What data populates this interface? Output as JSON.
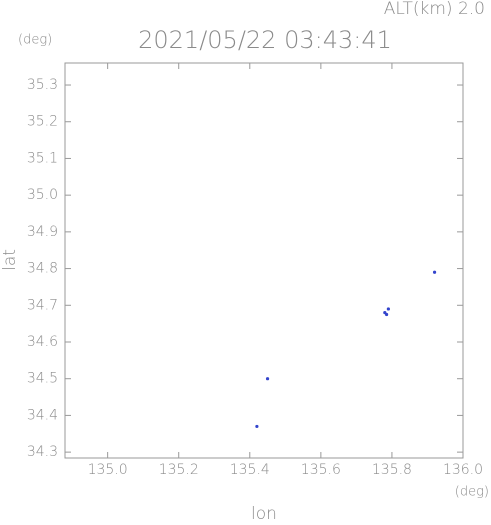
{
  "chart_data": {
    "type": "scatter",
    "title": "2021/05/22 03:43:41",
    "altitude_label": "ALT(km) 2.0",
    "y_unit": "(deg)",
    "x_unit": "(deg)",
    "x_label": "lon",
    "y_label": "lat",
    "xlim": [
      134.88,
      136.0
    ],
    "ylim": [
      34.284,
      35.36
    ],
    "xticks": [
      {
        "value": 135.0,
        "label": "135.0"
      },
      135.2,
      135.4,
      135.6,
      135.8,
      {
        "value": 136.0,
        "label": "136.0"
      }
    ],
    "yticks": [
      35.3,
      35.2,
      35.1,
      {
        "value": 35.0,
        "label": "35.0"
      },
      34.9,
      34.8,
      34.7,
      34.6,
      34.5,
      34.4,
      34.3
    ],
    "series": [
      {
        "color": "#3344cc",
        "x": [
          135.92,
          135.78,
          135.79,
          135.785,
          135.45,
          135.42
        ],
        "y": [
          34.79,
          34.68,
          34.69,
          34.675,
          34.5,
          34.37
        ]
      }
    ]
  }
}
